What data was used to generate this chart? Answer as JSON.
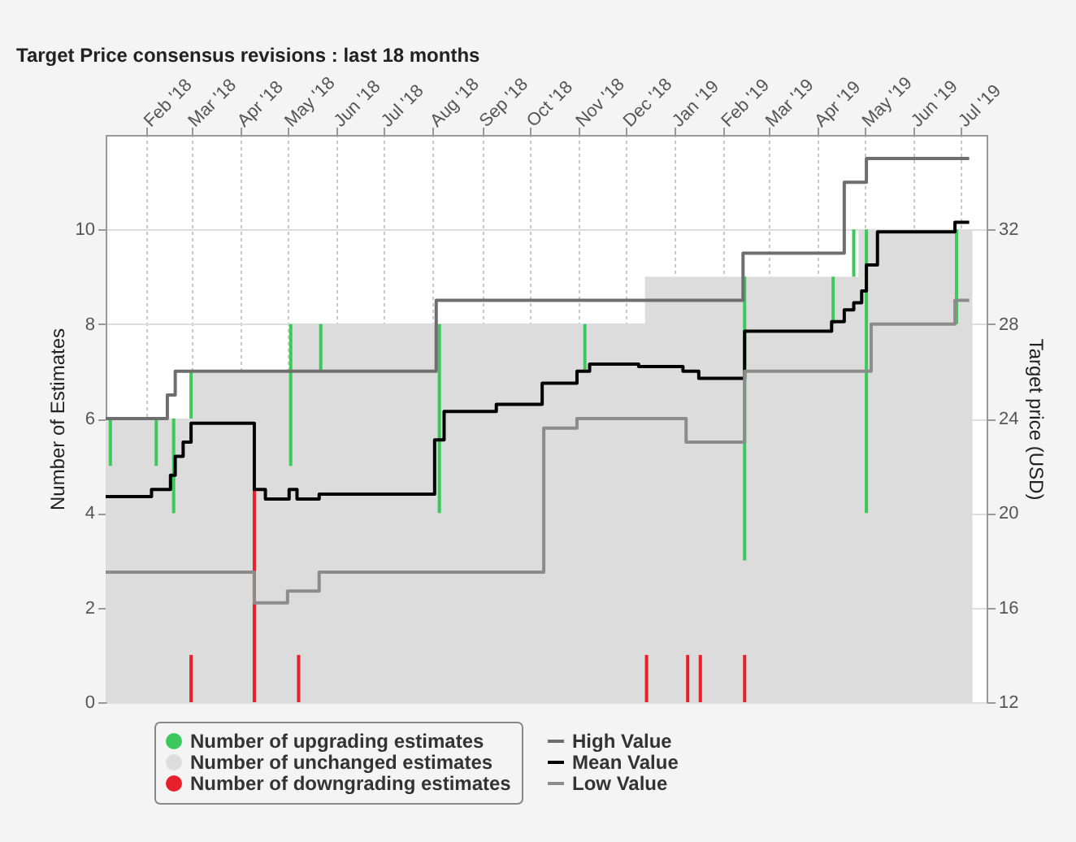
{
  "chart_data": {
    "type": "bar",
    "title": "Target Price consensus revisions : last 18 months",
    "ylabel": "Number of Estimates",
    "y2label": "Target price (USD)",
    "xlim": [
      "2018-01-06",
      "2019-07-17"
    ],
    "xticks": [
      {
        "value": "2018-02-01",
        "label": "Feb '18"
      },
      {
        "value": "2018-03-01",
        "label": "Mar '18"
      },
      {
        "value": "2018-04-01",
        "label": "Apr '18"
      },
      {
        "value": "2018-05-01",
        "label": "May '18"
      },
      {
        "value": "2018-06-01",
        "label": "Jun '18"
      },
      {
        "value": "2018-07-01",
        "label": "Jul '18"
      },
      {
        "value": "2018-08-01",
        "label": "Aug '18"
      },
      {
        "value": "2018-09-01",
        "label": "Sep '18"
      },
      {
        "value": "2018-10-01",
        "label": "Oct '18"
      },
      {
        "value": "2018-11-01",
        "label": "Nov '18"
      },
      {
        "value": "2018-12-01",
        "label": "Dec '18"
      },
      {
        "value": "2019-01-01",
        "label": "Jan '19"
      },
      {
        "value": "2019-02-01",
        "label": "Feb '19"
      },
      {
        "value": "2019-03-01",
        "label": "Mar '19"
      },
      {
        "value": "2019-04-01",
        "label": "Apr '19"
      },
      {
        "value": "2019-05-01",
        "label": "May '19"
      },
      {
        "value": "2019-06-01",
        "label": "Jun '19"
      },
      {
        "value": "2019-07-01",
        "label": "Jul '19"
      }
    ],
    "ylim": [
      0,
      12
    ],
    "yticks": [
      0,
      2,
      4,
      6,
      8,
      10
    ],
    "y2lim": [
      12,
      36
    ],
    "y2ticks": [
      12,
      16,
      20,
      24,
      28,
      32
    ],
    "grid": true,
    "legend": "bottom",
    "series": [
      {
        "name": "Number of upgrading estimates",
        "color": "#3cc85a",
        "x": [
          "2018-01-09",
          "2018-02-07",
          "2018-02-18",
          "2018-03-01",
          "2018-05-03",
          "2018-05-22",
          "2018-08-05",
          "2018-11-05",
          "2019-02-14",
          "2019-04-11",
          "2019-04-24",
          "2019-05-02",
          "2019-06-28"
        ],
        "base": [
          5,
          5,
          4,
          6,
          5,
          7,
          4,
          7,
          3,
          8,
          9,
          4,
          8
        ],
        "values": [
          1,
          1,
          2,
          1,
          3,
          1,
          4,
          1,
          6,
          1,
          1,
          6,
          2
        ]
      },
      {
        "name": "Number of unchanged estimates",
        "type": "area",
        "color": "#dcdcdc",
        "x": [
          "2018-01-06",
          "2018-03-01",
          "2018-05-03",
          "2018-12-13",
          "2019-04-27",
          "2019-07-08"
        ],
        "values": [
          6,
          7,
          8,
          9,
          10,
          10
        ]
      },
      {
        "name": "Number of downgrading estimates",
        "color": "#e8202a",
        "x": [
          "2018-03-01",
          "2018-04-10",
          "2018-05-08",
          "2018-12-14",
          "2019-01-09",
          "2019-01-17",
          "2019-02-14"
        ],
        "values": [
          1,
          4.5,
          1,
          1,
          1,
          1,
          1
        ]
      },
      {
        "name": "High Value",
        "type": "step",
        "axis": "y2",
        "color": "#6e6e6e",
        "x": [
          "2018-01-06",
          "2018-02-14",
          "2018-02-19",
          "2018-08-03",
          "2019-02-13",
          "2019-04-18",
          "2019-05-02",
          "2019-07-06"
        ],
        "values": [
          24,
          25,
          26,
          29,
          31,
          34,
          35,
          35
        ]
      },
      {
        "name": "Mean Value",
        "type": "step",
        "axis": "y2",
        "color": "#000000",
        "x": [
          "2018-01-06",
          "2018-02-04",
          "2018-02-16",
          "2018-02-19",
          "2018-02-24",
          "2018-03-01",
          "2018-04-10",
          "2018-04-17",
          "2018-05-02",
          "2018-05-07",
          "2018-05-21",
          "2018-08-02",
          "2018-08-08",
          "2018-09-10",
          "2018-10-09",
          "2018-10-31",
          "2018-11-08",
          "2018-12-09",
          "2019-01-06",
          "2019-01-16",
          "2019-02-14",
          "2019-04-10",
          "2019-04-18",
          "2019-04-24",
          "2019-04-29",
          "2019-05-02",
          "2019-05-09",
          "2019-06-27",
          "2019-07-06"
        ],
        "values": [
          20.7,
          21.0,
          21.6,
          22.4,
          23.0,
          23.8,
          21.0,
          20.6,
          21.0,
          20.6,
          20.8,
          23.1,
          24.3,
          24.6,
          25.5,
          26.0,
          26.3,
          26.2,
          26.0,
          25.7,
          27.7,
          28.1,
          28.6,
          28.9,
          29.4,
          30.5,
          31.9,
          32.3,
          32.3
        ]
      },
      {
        "name": "Low Value",
        "type": "step",
        "axis": "y2",
        "color": "#8c8c8c",
        "x": [
          "2018-01-06",
          "2018-04-10",
          "2018-05-01",
          "2018-05-21",
          "2018-10-10",
          "2018-10-31",
          "2019-01-08",
          "2019-02-14",
          "2019-05-05",
          "2019-06-27",
          "2019-07-06"
        ],
        "values": [
          17.5,
          16.2,
          16.7,
          17.5,
          23.6,
          24.0,
          23.0,
          26.0,
          28.0,
          29.0,
          29.0
        ]
      }
    ]
  }
}
